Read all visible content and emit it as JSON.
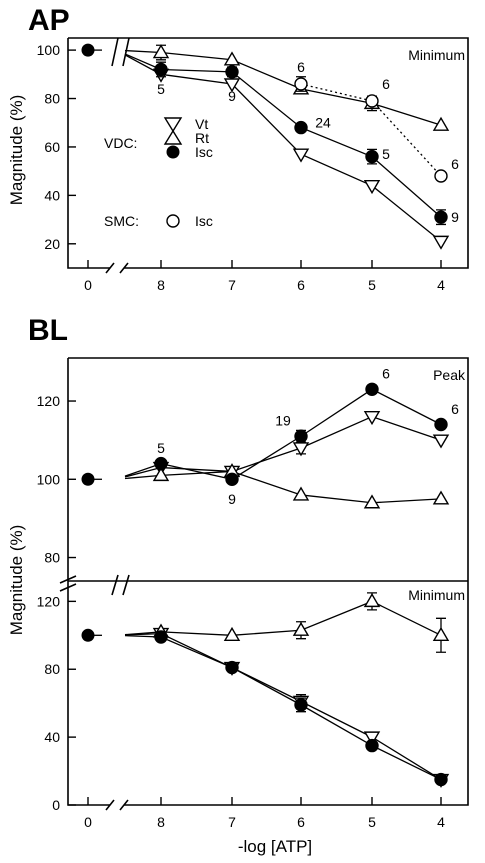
{
  "chart_data": [
    {
      "type": "line",
      "title": "AP",
      "ylabel": "Magnitude (%)",
      "xlabel": "",
      "panel_label": "Minimum",
      "x_ticks": [
        "0",
        "8",
        "7",
        "6",
        "5",
        "4"
      ],
      "y_ticks": [
        "20",
        "40",
        "60",
        "80",
        "100"
      ],
      "ylim": [
        10,
        105
      ],
      "grid": false,
      "legend": {
        "groups": [
          {
            "label": "VDC:",
            "entries": [
              {
                "symbol": "down-triangle-open",
                "name": "Vt"
              },
              {
                "symbol": "up-triangle-open",
                "name": "Rt"
              },
              {
                "symbol": "circle-filled",
                "name": "Isc"
              }
            ]
          },
          {
            "label": "SMC:",
            "entries": [
              {
                "symbol": "circle-open",
                "name": "Isc"
              }
            ]
          }
        ]
      },
      "baseline": {
        "x": "0",
        "y": 100
      },
      "series": [
        {
          "name": "Vt",
          "group": "VDC",
          "marker": "down-triangle-open",
          "line": "solid",
          "points": [
            {
              "x": "8",
              "y": 90
            },
            {
              "x": "7",
              "y": 86
            },
            {
              "x": "6",
              "y": 57
            },
            {
              "x": "5",
              "y": 44
            },
            {
              "x": "4",
              "y": 21
            }
          ]
        },
        {
          "name": "Rt",
          "group": "VDC",
          "marker": "up-triangle-open",
          "line": "solid",
          "points": [
            {
              "x": "8",
              "y": 99,
              "err": 3
            },
            {
              "x": "7",
              "y": 96
            },
            {
              "x": "6",
              "y": 84
            },
            {
              "x": "5",
              "y": 78,
              "err": 3
            },
            {
              "x": "4",
              "y": 69
            }
          ]
        },
        {
          "name": "Isc",
          "group": "VDC",
          "marker": "circle-filled",
          "line": "solid",
          "points": [
            {
              "x": "8",
              "y": 92,
              "err": 3
            },
            {
              "x": "7",
              "y": 91,
              "err": 2
            },
            {
              "x": "6",
              "y": 68
            },
            {
              "x": "5",
              "y": 56,
              "err": 3
            },
            {
              "x": "4",
              "y": 31,
              "err": 3
            }
          ]
        },
        {
          "name": "Isc",
          "group": "SMC",
          "marker": "circle-open",
          "line": "dotted",
          "points": [
            {
              "x": "6",
              "y": 86,
              "err": 3
            },
            {
              "x": "5",
              "y": 79
            },
            {
              "x": "4",
              "y": 48
            }
          ]
        }
      ],
      "annotations": [
        {
          "text": "5",
          "x": "8",
          "y": 84
        },
        {
          "text": "9",
          "x": "7",
          "y": 81
        },
        {
          "text": "6",
          "x": "6",
          "y": 93
        },
        {
          "text": "24",
          "x": "6",
          "y": 70
        },
        {
          "text": "6",
          "x": "5",
          "y": 86
        },
        {
          "text": "5",
          "x": "5",
          "y": 57
        },
        {
          "text": "6",
          "x": "4",
          "y": 53
        },
        {
          "text": "9",
          "x": "4",
          "y": 31
        }
      ]
    },
    {
      "type": "line",
      "title": "BL",
      "ylabel": "Magnitude (%)",
      "xlabel": "-log [ATP]",
      "panels": [
        {
          "panel_label": "Peak",
          "y_ticks": [
            "80",
            "100",
            "120"
          ],
          "ylim": [
            74,
            131
          ],
          "baseline": {
            "x": "0",
            "y": 100
          },
          "series": [
            {
              "name": "Vt",
              "marker": "down-triangle-open",
              "line": "solid",
              "points": [
                {
                  "x": "8",
                  "y": 103
                },
                {
                  "x": "7",
                  "y": 102
                },
                {
                  "x": "6",
                  "y": 108,
                  "err": 1.5
                },
                {
                  "x": "5",
                  "y": 116
                },
                {
                  "x": "4",
                  "y": 110
                }
              ]
            },
            {
              "name": "Rt",
              "marker": "up-triangle-open",
              "line": "solid",
              "points": [
                {
                  "x": "8",
                  "y": 101
                },
                {
                  "x": "7",
                  "y": 102
                },
                {
                  "x": "6",
                  "y": 96
                },
                {
                  "x": "5",
                  "y": 94
                },
                {
                  "x": "4",
                  "y": 95
                }
              ]
            },
            {
              "name": "Isc",
              "marker": "circle-filled",
              "line": "solid",
              "points": [
                {
                  "x": "8",
                  "y": 104,
                  "err": 1
                },
                {
                  "x": "7",
                  "y": 100
                },
                {
                  "x": "6",
                  "y": 111,
                  "err": 1.5
                },
                {
                  "x": "5",
                  "y": 123,
                  "err": 1
                },
                {
                  "x": "4",
                  "y": 114
                }
              ]
            }
          ],
          "annotations": [
            {
              "text": "5",
              "x": "8",
              "y": 108
            },
            {
              "text": "9",
              "x": "7",
              "y": 95
            },
            {
              "text": "19",
              "x": "6",
              "y": 115
            },
            {
              "text": "6",
              "x": "5",
              "y": 127
            },
            {
              "text": "6",
              "x": "4",
              "y": 118
            }
          ]
        },
        {
          "panel_label": "Minimum",
          "x_ticks": [
            "0",
            "8",
            "7",
            "6",
            "5",
            "4"
          ],
          "y_ticks": [
            "0",
            "40",
            "80",
            "120"
          ],
          "ylim": [
            0,
            132
          ],
          "baseline": {
            "x": "0",
            "y": 100
          },
          "series": [
            {
              "name": "Vt",
              "marker": "down-triangle-open",
              "line": "solid",
              "points": [
                {
                  "x": "8",
                  "y": 101
                },
                {
                  "x": "7",
                  "y": 81
                },
                {
                  "x": "6",
                  "y": 61,
                  "err": 4
                },
                {
                  "x": "5",
                  "y": 40
                },
                {
                  "x": "4",
                  "y": 15
                }
              ]
            },
            {
              "name": "Rt",
              "marker": "up-triangle-open",
              "line": "solid",
              "points": [
                {
                  "x": "8",
                  "y": 102
                },
                {
                  "x": "7",
                  "y": 100
                },
                {
                  "x": "6",
                  "y": 103,
                  "err": 5
                },
                {
                  "x": "5",
                  "y": 120,
                  "err": 5
                },
                {
                  "x": "4",
                  "y": 100,
                  "err": 10
                }
              ]
            },
            {
              "name": "Isc",
              "marker": "circle-filled",
              "line": "solid",
              "points": [
                {
                  "x": "8",
                  "y": 99
                },
                {
                  "x": "7",
                  "y": 81
                },
                {
                  "x": "6",
                  "y": 59,
                  "err": 4
                },
                {
                  "x": "5",
                  "y": 35
                },
                {
                  "x": "4",
                  "y": 15
                }
              ]
            }
          ]
        }
      ]
    }
  ]
}
